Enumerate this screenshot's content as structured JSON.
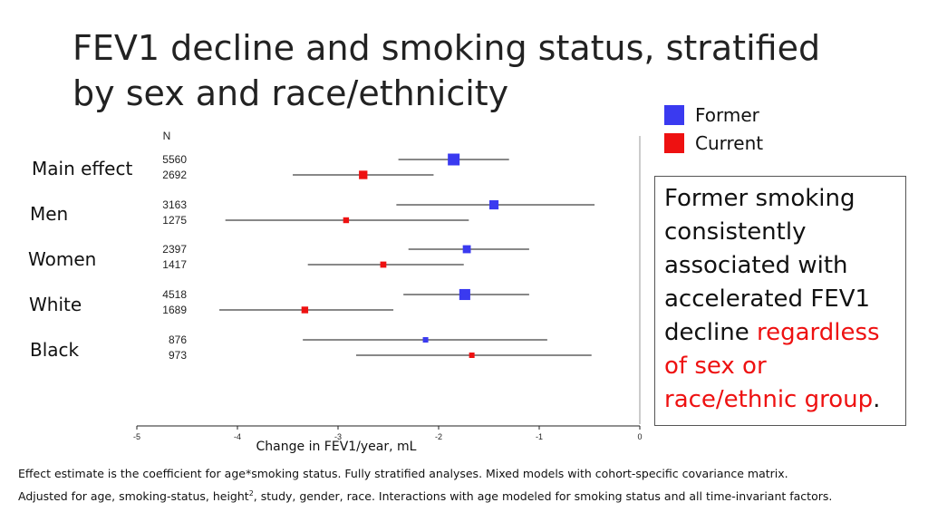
{
  "title": "FEV1 decline and smoking status, stratified by sex and race/ethnicity",
  "legend": [
    {
      "name": "Former",
      "color": "#3a3af0"
    },
    {
      "name": "Current",
      "color": "#ee1111"
    }
  ],
  "chart_data": {
    "type": "forest",
    "n_header": "N",
    "xlabel": "Change in FEV1/year, mL",
    "xlim": [
      -5,
      0
    ],
    "xticks": [
      "-5",
      "-4",
      "-3",
      "-2",
      "-1",
      "0"
    ],
    "groups": [
      {
        "label": "Main effect",
        "rows": [
          {
            "series": "Former",
            "n": "5560",
            "estimate": -1.85,
            "ci": [
              -2.4,
              -1.3
            ]
          },
          {
            "series": "Current",
            "n": "2692",
            "estimate": -2.75,
            "ci": [
              -3.45,
              -2.05
            ]
          }
        ]
      },
      {
        "label": "Men",
        "rows": [
          {
            "series": "Former",
            "n": "3163",
            "estimate": -1.45,
            "ci": [
              -2.42,
              -0.45
            ]
          },
          {
            "series": "Current",
            "n": "1275",
            "estimate": -2.92,
            "ci": [
              -4.12,
              -1.7
            ]
          }
        ]
      },
      {
        "label": "Women",
        "rows": [
          {
            "series": "Former",
            "n": "2397",
            "estimate": -1.72,
            "ci": [
              -2.3,
              -1.1
            ]
          },
          {
            "series": "Current",
            "n": "1417",
            "estimate": -2.55,
            "ci": [
              -3.3,
              -1.75
            ]
          }
        ]
      },
      {
        "label": "White",
        "rows": [
          {
            "series": "Former",
            "n": "4518",
            "estimate": -1.74,
            "ci": [
              -2.35,
              -1.1
            ]
          },
          {
            "series": "Current",
            "n": "1689",
            "estimate": -3.33,
            "ci": [
              -4.18,
              -2.45
            ]
          }
        ]
      },
      {
        "label": "Black",
        "rows": [
          {
            "series": "Former",
            "n": "876",
            "estimate": -2.13,
            "ci": [
              -3.35,
              -0.92
            ]
          },
          {
            "series": "Current",
            "n": "973",
            "estimate": -1.67,
            "ci": [
              -2.82,
              -0.48
            ]
          }
        ]
      }
    ]
  },
  "callout": {
    "text_main": "Former smoking consistently associated with accelerated FEV1 decline",
    "text_highlight": "regardless of sex or race/ethnic group",
    "text_end": "."
  },
  "footnote": {
    "line1": "Effect estimate is the coefficient for age*smoking status. Fully stratified analyses. Mixed models with cohort-specific covariance matrix.",
    "line2_a": "Adjusted for age, smoking-status, height",
    "line2_sup": "2",
    "line2_b": ", study, gender, race. Interactions with age modeled for smoking status and all time-invariant factors."
  }
}
